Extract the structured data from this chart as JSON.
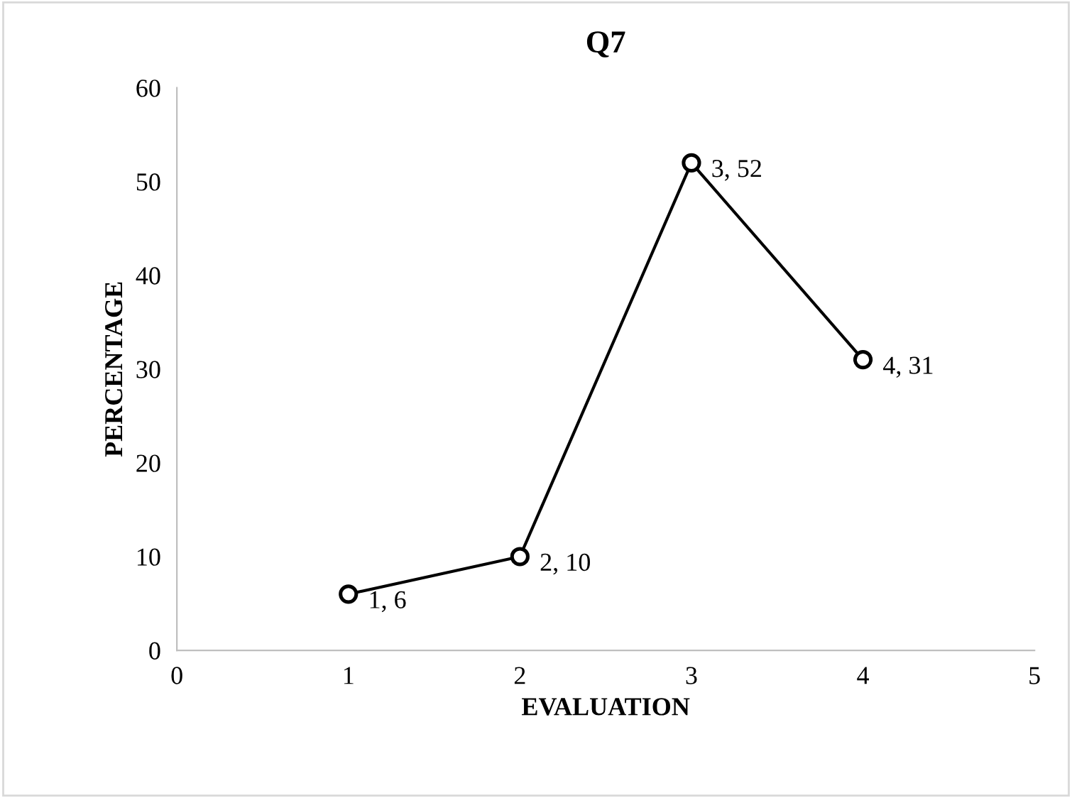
{
  "chart_data": {
    "type": "line",
    "title": "Q7",
    "xlabel": "EVALUATION",
    "ylabel": "PERCENTAGE",
    "x": [
      1,
      2,
      3,
      4
    ],
    "series": [
      {
        "color": "#000000",
        "values": [
          6,
          10,
          52,
          31
        ],
        "value_labels": [
          "1, 6",
          "2, 10",
          "3, 52",
          "4, 31"
        ]
      }
    ],
    "xlim": [
      0,
      5
    ],
    "xticks": [
      0,
      1,
      2,
      3,
      4,
      5
    ],
    "ylim": [
      0,
      60
    ],
    "yticks": [
      0,
      10,
      20,
      30,
      40,
      50,
      60
    ],
    "grid": false,
    "legend": false,
    "marker": "circle",
    "line_style": "solid"
  }
}
